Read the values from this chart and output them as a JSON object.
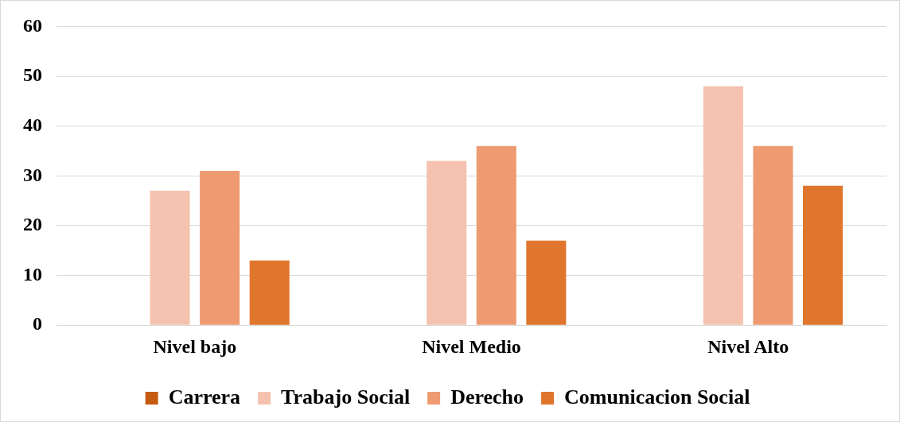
{
  "chart_data": {
    "type": "bar",
    "categories": [
      "Nivel bajo",
      "Nivel Medio",
      "Nivel Alto"
    ],
    "series": [
      {
        "name": "Carrera",
        "color": "#c55a11",
        "values": [
          null,
          null,
          null
        ]
      },
      {
        "name": "Trabajo Social",
        "color": "#f4c2ae",
        "values": [
          27,
          33,
          48
        ]
      },
      {
        "name": "Derecho",
        "color": "#ee9b72",
        "values": [
          31,
          36,
          36
        ]
      },
      {
        "name": "Comunicacion Social",
        "color": "#e0762e",
        "values": [
          13,
          17,
          28
        ]
      }
    ],
    "ylim": [
      0,
      60
    ],
    "yticks": [
      0,
      10,
      20,
      30,
      40,
      50,
      60
    ],
    "grid": "y",
    "legend": "bottom"
  }
}
